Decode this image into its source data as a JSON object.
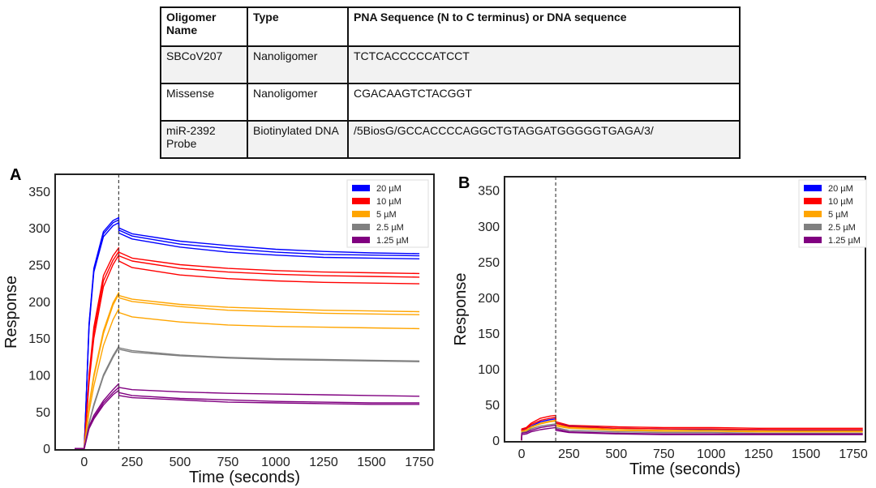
{
  "table": {
    "headers": [
      "Oligomer Name",
      "Type",
      "PNA Sequence (N to C terminus) or DNA sequence"
    ],
    "rows": [
      [
        "SBCoV207",
        "Nanoligomer",
        "TCTCACCCCCATCCT"
      ],
      [
        "Missense",
        "Nanoligomer",
        "CGACAAGTCTACGGT"
      ],
      [
        "miR-2392 Probe",
        "Biotinylated DNA",
        "/5BiosG/GCCACCCCAGGCTGTAGGATGGGGGTGAGA/3/"
      ]
    ]
  },
  "colors": {
    "20 µM": "#0000ff",
    "10 µM": "#ff0000",
    "5 µM": "#ffa500",
    "2.5 µM": "#808080",
    "1.25 µM": "#800080"
  },
  "chart_data": [
    {
      "panel": "A",
      "type": "line",
      "xlabel": "Time (seconds)",
      "ylabel": "Response",
      "xlim": [
        -152,
        1826
      ],
      "ylim": [
        -2,
        373
      ],
      "xticks": [
        0,
        250,
        500,
        750,
        1000,
        1250,
        1500,
        1750
      ],
      "yticks": [
        0,
        50,
        100,
        150,
        200,
        250,
        300,
        350
      ],
      "vline": 180,
      "legend_position": "top-right",
      "legend": [
        "20 µM",
        "10 µM",
        "5 µM",
        "2.5 µM",
        "1.25 µM"
      ],
      "x": [
        -50,
        0,
        25,
        50,
        100,
        150,
        180,
        181,
        250,
        500,
        750,
        1000,
        1250,
        1500,
        1750
      ],
      "series": [
        {
          "name": "20 µM",
          "values": [
            0,
            0,
            170,
            245,
            295,
            310,
            314,
            300,
            292,
            282,
            276,
            271,
            268,
            266,
            265
          ]
        },
        {
          "name": "20 µM",
          "values": [
            0,
            0,
            168,
            243,
            292,
            307,
            311,
            297,
            289,
            278,
            272,
            267,
            264,
            263,
            262
          ]
        },
        {
          "name": "20 µM",
          "values": [
            0,
            0,
            165,
            240,
            288,
            303,
            307,
            293,
            285,
            274,
            267,
            263,
            260,
            259,
            258
          ]
        },
        {
          "name": "10 µM",
          "values": [
            0,
            0,
            100,
            165,
            235,
            262,
            273,
            267,
            259,
            250,
            245,
            242,
            240,
            239,
            238
          ]
        },
        {
          "name": "10 µM",
          "values": [
            0,
            0,
            95,
            158,
            228,
            256,
            268,
            262,
            255,
            245,
            240,
            237,
            235,
            234,
            233
          ]
        },
        {
          "name": "10 µM",
          "values": [
            0,
            0,
            90,
            150,
            220,
            250,
            263,
            255,
            246,
            236,
            231,
            228,
            226,
            225,
            224
          ]
        },
        {
          "name": "5 µM",
          "values": [
            0,
            0,
            60,
            100,
            160,
            198,
            212,
            208,
            203,
            196,
            192,
            190,
            188,
            187,
            186
          ]
        },
        {
          "name": "5 µM",
          "values": [
            0,
            0,
            58,
            97,
            156,
            195,
            210,
            205,
            200,
            193,
            188,
            186,
            184,
            183,
            182
          ]
        },
        {
          "name": "5 µM",
          "values": [
            0,
            0,
            50,
            85,
            140,
            175,
            190,
            185,
            179,
            172,
            168,
            166,
            165,
            164,
            163
          ]
        },
        {
          "name": "2.5 µM",
          "values": [
            0,
            0,
            35,
            60,
            100,
            126,
            139,
            137,
            133,
            127,
            124,
            122,
            121,
            120,
            119
          ]
        },
        {
          "name": "2.5 µM",
          "values": [
            0,
            0,
            34,
            58,
            98,
            124,
            137,
            135,
            131,
            126,
            123,
            121,
            120,
            119,
            118
          ]
        },
        {
          "name": "1.25 µM",
          "values": [
            0,
            0,
            30,
            45,
            65,
            80,
            88,
            83,
            80,
            77,
            75,
            74,
            73,
            72,
            71
          ]
        },
        {
          "name": "1.25 µM",
          "values": [
            0,
            0,
            28,
            42,
            62,
            76,
            83,
            76,
            72,
            68,
            66,
            64,
            63,
            62,
            62
          ]
        },
        {
          "name": "1.25 µM",
          "values": [
            0,
            0,
            27,
            40,
            59,
            73,
            79,
            72,
            69,
            66,
            63,
            62,
            61,
            60,
            60
          ]
        }
      ]
    },
    {
      "panel": "B",
      "type": "line",
      "xlabel": "Time (seconds)",
      "ylabel": "Response",
      "xlim": [
        -90,
        1814
      ],
      "ylim": [
        -2,
        369
      ],
      "xticks": [
        0,
        250,
        500,
        750,
        1000,
        1250,
        1500,
        1750
      ],
      "yticks": [
        0,
        50,
        100,
        150,
        200,
        250,
        300,
        350
      ],
      "vline": 180,
      "legend_position": "top-right",
      "legend": [
        "20 µM",
        "10 µM",
        "5 µM",
        "2.5 µM",
        "1.25 µM"
      ],
      "x": [
        0,
        1,
        25,
        50,
        100,
        150,
        180,
        181,
        250,
        500,
        750,
        1000,
        1250,
        1500,
        1800
      ],
      "series": [
        {
          "name": "20 µM",
          "values": [
            0,
            15,
            17,
            20,
            26,
            29,
            30,
            24,
            20,
            17,
            16,
            15,
            15,
            14,
            14
          ]
        },
        {
          "name": "10 µM",
          "values": [
            0,
            16,
            18,
            24,
            31,
            34,
            35,
            26,
            21,
            19,
            18,
            18,
            17,
            17,
            17
          ]
        },
        {
          "name": "10 µM",
          "values": [
            0,
            14,
            16,
            22,
            28,
            31,
            32,
            24,
            19,
            17,
            16,
            16,
            15,
            15,
            15
          ]
        },
        {
          "name": "5 µM",
          "values": [
            0,
            13,
            14,
            19,
            24,
            27,
            28,
            22,
            18,
            15,
            14,
            14,
            13,
            13,
            13
          ]
        },
        {
          "name": "5 µM",
          "values": [
            0,
            12,
            13,
            18,
            23,
            26,
            27,
            20,
            17,
            14,
            13,
            13,
            12,
            12,
            12
          ]
        },
        {
          "name": "2.5 µM",
          "values": [
            0,
            11,
            12,
            16,
            20,
            22,
            23,
            18,
            14,
            12,
            11,
            11,
            10,
            10,
            10
          ]
        },
        {
          "name": "1.25 µM",
          "values": [
            0,
            10,
            11,
            14,
            18,
            20,
            21,
            16,
            12,
            10,
            9,
            9,
            9,
            9,
            9
          ]
        },
        {
          "name": "1.25 µM",
          "values": [
            0,
            8,
            9,
            12,
            15,
            17,
            18,
            14,
            11,
            9,
            8,
            8,
            8,
            8,
            8
          ]
        }
      ]
    }
  ]
}
